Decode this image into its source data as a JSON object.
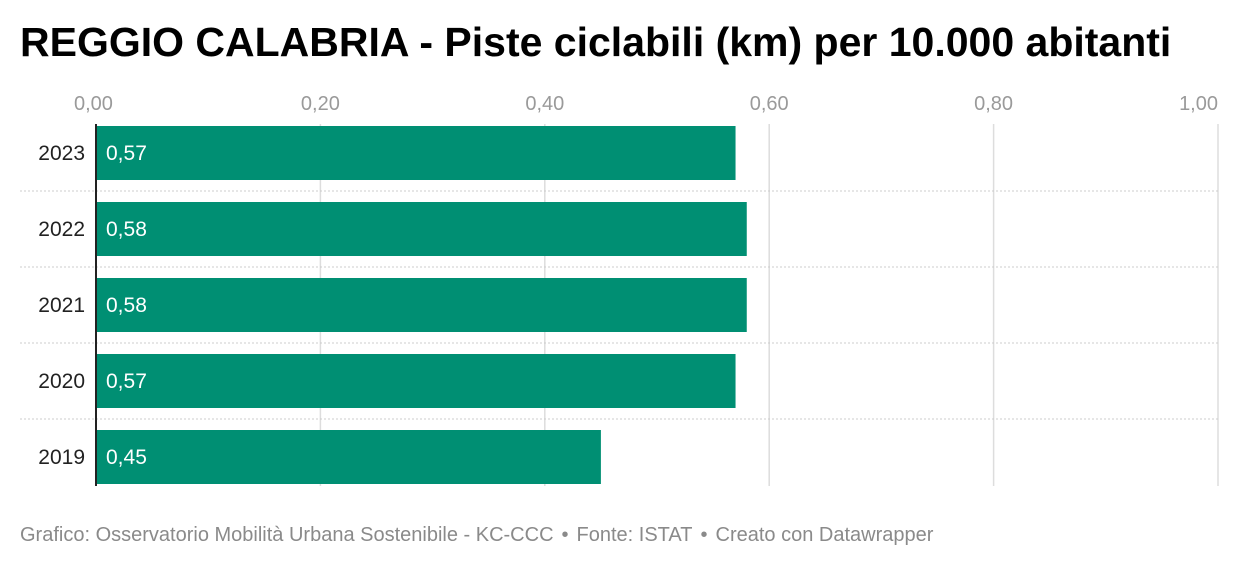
{
  "chart_data": {
    "type": "bar",
    "orientation": "horizontal",
    "title": "REGGIO CALABRIA - Piste ciclabili (km) per 10.000 abitanti",
    "categories": [
      "2023",
      "2022",
      "2021",
      "2020",
      "2019"
    ],
    "values": [
      0.57,
      0.58,
      0.58,
      0.57,
      0.45
    ],
    "value_labels": [
      "0,57",
      "0,58",
      "0,58",
      "0,57",
      "0,45"
    ],
    "xlim": [
      0,
      1
    ],
    "x_ticks": [
      0,
      0.2,
      0.4,
      0.6,
      0.8,
      1.0
    ],
    "x_tick_labels": [
      "0,00",
      "0,20",
      "0,40",
      "0,60",
      "0,80",
      "1,00"
    ],
    "x_axis_position": "top",
    "grid": true,
    "bar_color": "#008f73",
    "value_label_color": "#ffffff"
  },
  "footer": {
    "graphic_credit": "Grafico: Osservatorio Mobilità Urbana Sostenibile - KC-CCC",
    "separator": "•",
    "source": "Fonte: ISTAT",
    "made_with": "Creato con Datawrapper"
  }
}
